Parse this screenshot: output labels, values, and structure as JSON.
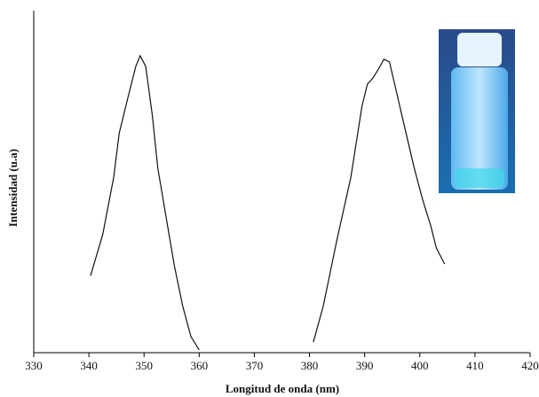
{
  "chart_data": {
    "type": "line",
    "x_label": "Longitud de onda (nm)",
    "y_label": "Intensidad (u.a)",
    "x": [
      340.3,
      342.5,
      344.5,
      345.5,
      347,
      348.5,
      349.3,
      350.3,
      351.5,
      352.5,
      354,
      355.5,
      357,
      358.5,
      360,
      370,
      380.7,
      382.5,
      385,
      387.5,
      389.5,
      390.5,
      391.5,
      392.5,
      393.5,
      394.5,
      396,
      397.5,
      399,
      400.5,
      402,
      403,
      404.5
    ],
    "series": [
      {
        "color": "#111111",
        "values": [
          22.5,
          34.5,
          51.3,
          64.2,
          74.1,
          83.7,
          86.8,
          83.7,
          69.4,
          53.9,
          39.6,
          25.4,
          13.7,
          4.7,
          0.8,
          null,
          3.1,
          13.7,
          33.2,
          51.3,
          72,
          78.5,
          80.3,
          82.9,
          85.8,
          85,
          74.6,
          64.2,
          53.9,
          44.8,
          37,
          30.6,
          25.9
        ]
      }
    ],
    "xlim": [
      330,
      420
    ],
    "ylim": [
      0,
      100
    ],
    "xticks": [
      330,
      340,
      350,
      360,
      370,
      380,
      390,
      400,
      410,
      420
    ]
  }
}
